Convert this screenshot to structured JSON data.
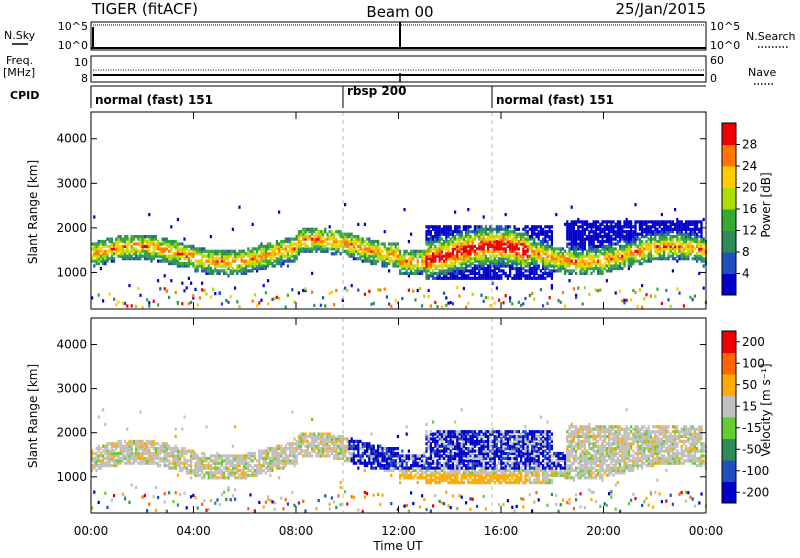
{
  "header": {
    "radar": "TIGER (fitACF)",
    "beam": "Beam 00",
    "date": "25/Jan/2015"
  },
  "top_panels": {
    "nsky_label": "N.Sky",
    "nsky_ticks": [
      "10^5",
      "10^0"
    ],
    "nsearch_label": "N.Search",
    "freq_label": "Freq.",
    "freq_unit": "[MHz]",
    "freq_ticks": [
      "10",
      "8"
    ],
    "nave_label": "Nave",
    "nave_ticks": [
      "60",
      "0"
    ],
    "cpid_label": "CPID"
  },
  "cpid_modes": [
    {
      "label": "normal (fast) 151",
      "start_hour": 0
    },
    {
      "label": "rbsp 200",
      "start_hour": 10
    },
    {
      "label": "normal (fast) 151",
      "start_hour": 16
    }
  ],
  "chart_data": [
    {
      "type": "heatmap",
      "name": "power-panel",
      "ylabel": "Slant Range [km]",
      "yticks": [
        "1000",
        "2000",
        "3000",
        "4000"
      ],
      "ylim": [
        180,
        4600
      ],
      "xlim": [
        0,
        24
      ],
      "colorbar_label": "Power [dB]",
      "colorbar_ticks": [
        "4",
        "8",
        "12",
        "16",
        "20",
        "24",
        "28"
      ],
      "colorbar_range": [
        0,
        30
      ],
      "colors": [
        "#0000cc",
        "#1f4fbf",
        "#2e8b57",
        "#33aa33",
        "#aadd00",
        "#ffcc00",
        "#ff7700",
        "#ee0000"
      ]
    },
    {
      "type": "heatmap",
      "name": "velocity-panel",
      "ylabel": "Slant Range [km]",
      "yticks": [
        "1000",
        "2000",
        "3000",
        "4000"
      ],
      "ylim": [
        180,
        4600
      ],
      "xlim": [
        0,
        24
      ],
      "colorbar_label": "Velocity [m s⁻¹]",
      "colorbar_ticks": [
        "200",
        "100",
        "50",
        "15",
        "-15",
        "-50",
        "-100",
        "-200"
      ],
      "colorbar_range": [
        -250,
        250
      ],
      "colors": [
        "#0000cc",
        "#1f4fbf",
        "#2e8b57",
        "#66cc33",
        "#c0c0c0",
        "#ffaa00",
        "#ff6600",
        "#ee0000"
      ],
      "xlabel": "Time UT",
      "xticks": [
        "00:00",
        "04:00",
        "08:00",
        "12:00",
        "16:00",
        "20:00",
        "00:00"
      ]
    }
  ]
}
